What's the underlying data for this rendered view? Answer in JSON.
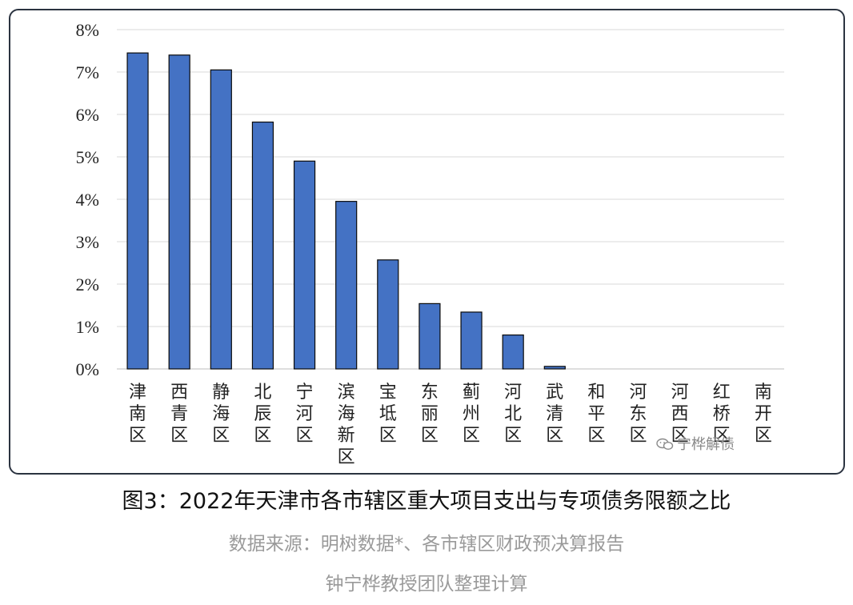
{
  "chart_data": {
    "type": "bar",
    "categories": [
      "津南区",
      "西青区",
      "静海区",
      "北辰区",
      "宁河区",
      "滨海新区",
      "宝坻区",
      "东丽区",
      "蓟州区",
      "河北区",
      "武清区",
      "和平区",
      "河东区",
      "河西区",
      "红桥区",
      "南开区"
    ],
    "values": [
      7.45,
      7.4,
      7.05,
      5.82,
      4.9,
      3.95,
      2.57,
      1.54,
      1.34,
      0.8,
      0.06,
      0,
      0,
      0,
      0,
      0
    ],
    "value_unit": "%",
    "ylim": [
      0,
      8
    ],
    "yticks": [
      "0%",
      "1%",
      "2%",
      "3%",
      "4%",
      "5%",
      "6%",
      "7%",
      "8%"
    ],
    "grid": true,
    "bar_color": "#4472c4",
    "bar_edge_color": "#0a0a0a",
    "xlabel": "",
    "ylabel": ""
  },
  "caption": {
    "title": "图3：2022年天津市各市辖区重大项目支出与专项债务限额之比",
    "source": "数据来源：明树数据*、各市辖区财政预决算报告",
    "team": "钟宁桦教授团队整理计算"
  },
  "watermark": {
    "text": "宁桦解债",
    "icon": "wechat-icon"
  }
}
